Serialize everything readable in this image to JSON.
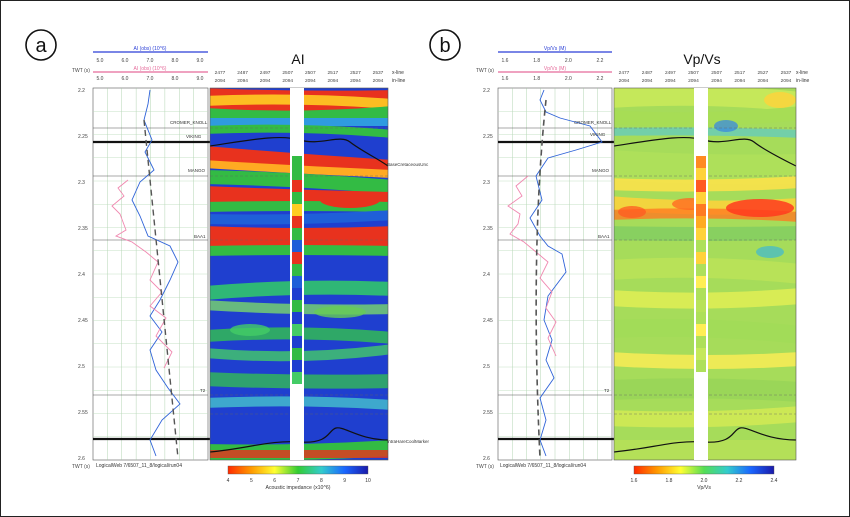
{
  "panels": [
    {
      "id": "a",
      "label": "a",
      "title": "AI",
      "track_header_blue": "AI (obs) (10^6)",
      "track_header_pink": "AI (obs) (10^6)",
      "track_scale": [
        "5.0",
        "6.0",
        "7.0",
        "8.0",
        "9.0"
      ],
      "time_unit": "TWT (s)",
      "axis_bottom_label": "TWT (s)",
      "time_ticks": [
        "2.2",
        "2.25",
        "2.3",
        "2.35",
        "2.4",
        "2.45",
        "2.5",
        "2.55",
        "2.6"
      ],
      "horizons": [
        "CROMER_KNOLL",
        "VIKING",
        "MANGO",
        "BAA1",
        "T2"
      ],
      "right_horizons": [
        "BaseCretaceousUnc",
        "IntraHareCoolMarker"
      ],
      "xline_labels": [
        "2477",
        "2487",
        "2497",
        "2507",
        "2507",
        "2517",
        "2527",
        "2537"
      ],
      "inline_label": "2094",
      "xline_caption": "x-line",
      "inline_caption": "in-line",
      "footer": "LogicalWeb 7/6507_11_8/logical/run04",
      "colorbar": {
        "ticks": [
          "4",
          "5",
          "6",
          "7",
          "8",
          "9",
          "10"
        ],
        "label": "Acoustic impedance (x10^6)",
        "stops": [
          "#ff2a00",
          "#ff9a00",
          "#ffff33",
          "#33cc33",
          "#33cccc",
          "#1a66ff",
          "#1a1aaa"
        ]
      }
    },
    {
      "id": "b",
      "label": "b",
      "title": "Vp/Vs",
      "track_header_blue": "Vp/Vs (M)",
      "track_header_pink": "Vp/Vs (M)",
      "track_scale": [
        "1.6",
        "1.8",
        "2.0",
        "2.2"
      ],
      "time_unit": "TWT (s)",
      "axis_bottom_label": "TWT (s)",
      "time_ticks": [
        "2.2",
        "2.25",
        "2.3",
        "2.35",
        "2.4",
        "2.45",
        "2.5",
        "2.55",
        "2.6"
      ],
      "horizons": [
        "CROMER_KNOLL",
        "VIKING",
        "MANGO",
        "BAA1",
        "T2"
      ],
      "xline_labels": [
        "2477",
        "2487",
        "2497",
        "2507",
        "2507",
        "2517",
        "2527",
        "2537"
      ],
      "inline_label": "2094",
      "xline_caption": "x-line",
      "inline_caption": "in-line",
      "footer": "LogicalWeb 7/6507_11_8/logical/run04",
      "colorbar": {
        "ticks": [
          "1.6",
          "1.8",
          "2.0",
          "2.2",
          "2.4"
        ],
        "label": "Vp/Vs",
        "stops": [
          "#ff2a00",
          "#ff9a00",
          "#ffff33",
          "#55dd55",
          "#33cccc",
          "#1a66ff",
          "#1a1aaa"
        ]
      }
    }
  ]
}
